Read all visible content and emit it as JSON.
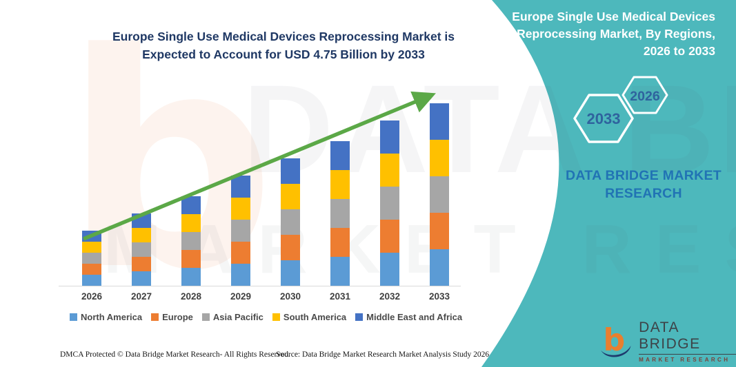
{
  "header": {
    "title_line1": "Europe Single Use Medical Devices Reprocessing Market is",
    "title_line2": "Expected to Account for USD 4.75 Billion by 2033"
  },
  "side_panel": {
    "title": "Europe Single Use Medical Devices Reprocessing Market, By Regions, 2026 to 2033",
    "hexagon_years": {
      "back": "2033",
      "front": "2026"
    },
    "brand_text": "DATA BRIDGE MARKET RESEARCH",
    "bg_color": "#4DB8BC"
  },
  "chart_data": {
    "type": "bar",
    "stacked": true,
    "title": "Europe Single Use Medical Devices Reprocessing Market is Expected to Account for USD 4.75 Billion by 2033",
    "unit": "USD Billion",
    "categories": [
      "2026",
      "2027",
      "2028",
      "2029",
      "2030",
      "2031",
      "2032",
      "2033"
    ],
    "totals_usd_billion": [
      1.45,
      1.9,
      2.35,
      2.85,
      3.35,
      3.8,
      4.3,
      4.75
    ],
    "series": [
      {
        "name": "North America",
        "color": "#5B9BD5",
        "values": [
          0.29,
          0.38,
          0.47,
          0.57,
          0.67,
          0.76,
          0.86,
          0.95
        ]
      },
      {
        "name": "Europe",
        "color": "#ED7D31",
        "values": [
          0.29,
          0.38,
          0.47,
          0.57,
          0.67,
          0.76,
          0.86,
          0.95
        ]
      },
      {
        "name": "Asia Pacific",
        "color": "#A6A6A6",
        "values": [
          0.29,
          0.38,
          0.47,
          0.57,
          0.67,
          0.76,
          0.86,
          0.95
        ]
      },
      {
        "name": "South America",
        "color": "#FFC000",
        "values": [
          0.29,
          0.38,
          0.47,
          0.57,
          0.67,
          0.76,
          0.86,
          0.95
        ]
      },
      {
        "name": "Middle East and Africa",
        "color": "#4472C4",
        "values": [
          0.29,
          0.38,
          0.47,
          0.57,
          0.67,
          0.76,
          0.86,
          0.95
        ]
      }
    ],
    "legend_position": "bottom",
    "grid": false,
    "ylim": [
      0,
      5
    ],
    "trend_arrow_color": "#5BA847"
  },
  "watermark": {
    "logo_glyph": "b",
    "line1": "DATA BRIDGE",
    "line2": "MARKET RESEARCH"
  },
  "logo": {
    "wordmark": "DATA BRIDGE",
    "subtitle": "MARKET RESEARCH"
  },
  "footer": {
    "dmca": "DMCA Protected © Data Bridge Market Research-  All Rights Reserved.",
    "source": "Source: Data Bridge Market Research  Market Analysis Study 2026"
  }
}
